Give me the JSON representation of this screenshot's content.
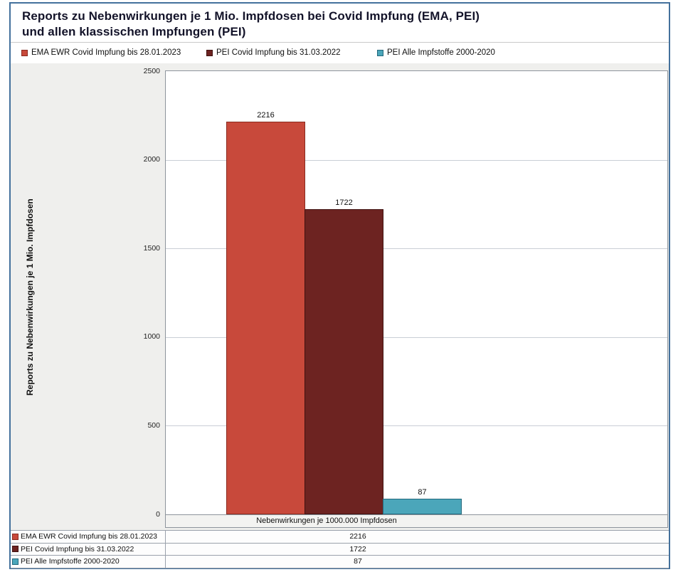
{
  "title": {
    "line1": "Reports zu Nebenwirkungen je 1 Mio. Impfdosen bei Covid Impfung (EMA, PEI)",
    "line2": "und allen klassischen Impfungen (PEI)"
  },
  "chart_data": {
    "type": "bar",
    "title": "Reports zu Nebenwirkungen je 1 Mio. Impfdosen bei Covid Impfung (EMA, PEI) und allen klassischen Impfungen (PEI)",
    "ylabel": "Reports zu Nebenwirkungen je 1 Mio. Impfdosen",
    "xlabel": "Nebenwirkungen je 1000.000 Impfdosen",
    "categories": [
      "Nebenwirkungen je 1000.000 Impfdosen"
    ],
    "series": [
      {
        "name": "EMA EWR Covid Impfung bis 28.01.2023",
        "values": [
          2216
        ],
        "color": "#c8493b",
        "border": "#8a2b20"
      },
      {
        "name": "PEI Covid Impfung bis 31.03.2022",
        "values": [
          1722
        ],
        "color": "#6d2321",
        "border": "#401211"
      },
      {
        "name": "PEI Alle Impfstoffe 2000-2020",
        "values": [
          87
        ],
        "color": "#4ba6ba",
        "border": "#23687c"
      }
    ],
    "ylim": [
      0,
      2500
    ],
    "yticks": [
      "0",
      "500",
      "1000",
      "1500",
      "2000",
      "2500"
    ],
    "grid": true,
    "legend_position": "top"
  },
  "table": {
    "rows": [
      {
        "label": "EMA EWR Covid Impfung bis 28.01.2023",
        "value": "2216"
      },
      {
        "label": "PEI Covid Impfung bis 31.03.2022",
        "value": "1722"
      },
      {
        "label": "PEI Alle Impfstoffe 2000-2020",
        "value": "87"
      }
    ]
  }
}
